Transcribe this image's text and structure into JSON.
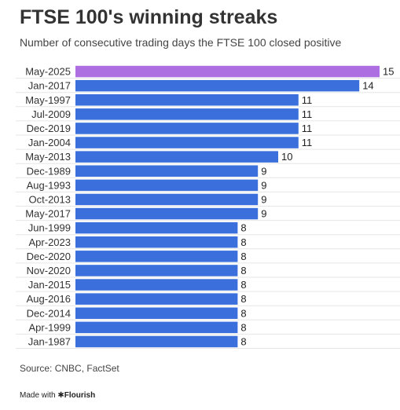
{
  "title": "FTSE 100's winning streaks",
  "subtitle": "Number of consecutive trading days the FTSE 100 closed positive",
  "source": "Source: CNBC, FactSet",
  "footer": {
    "made_with": "Made with",
    "brand": "Flourish",
    "brand_mark": "✱"
  },
  "colors": {
    "bar": "#3a6fdc",
    "highlight": "#ac6ee0",
    "text": "#222222",
    "gridline": "#e6e6e6"
  },
  "chart_data": {
    "type": "bar",
    "orientation": "horizontal",
    "categories": [
      "May-2025",
      "Jan-2017",
      "May-1997",
      "Jul-2009",
      "Dec-2019",
      "Jan-2004",
      "May-2013",
      "Dec-1989",
      "Aug-1993",
      "Oct-2013",
      "May-2017",
      "Jun-1999",
      "Apr-2023",
      "Dec-2020",
      "Nov-2020",
      "Jan-2015",
      "Aug-2016",
      "Dec-2014",
      "Apr-1999",
      "Jan-1987"
    ],
    "values": [
      15,
      14,
      11,
      11,
      11,
      11,
      10,
      9,
      9,
      9,
      9,
      8,
      8,
      8,
      8,
      8,
      8,
      8,
      8,
      8
    ],
    "highlighted_category": "May-2025",
    "xlim": [
      0,
      15
    ],
    "data_labels": true,
    "grid": false
  }
}
